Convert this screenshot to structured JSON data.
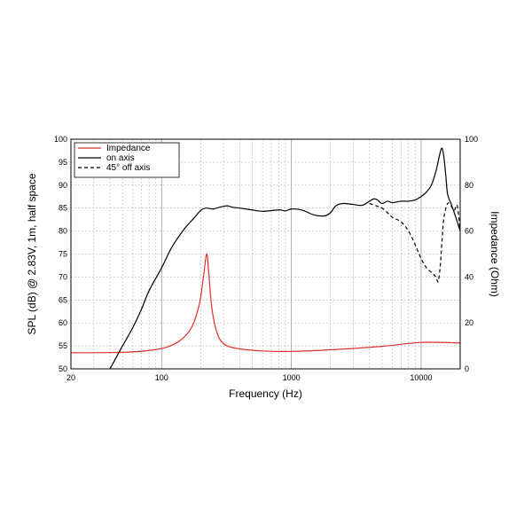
{
  "chart_data": {
    "type": "line",
    "xlabel": "Frequency (Hz)",
    "ylabel_left": "SPL (dB) @ 2.83V, 1m, half space",
    "ylabel_right": "Impedance (Ohm)",
    "x_scale": "log",
    "xlim": [
      20,
      20000
    ],
    "ylim_left": [
      50,
      100
    ],
    "ylim_right": [
      0,
      100
    ],
    "x_tick_labels": [
      "20",
      "100",
      "1000",
      "10000"
    ],
    "x_ticks": [
      20,
      100,
      1000,
      10000
    ],
    "y_left_ticks": [
      50,
      55,
      60,
      65,
      70,
      75,
      80,
      85,
      90,
      95,
      100
    ],
    "y_right_ticks": [
      0,
      20,
      40,
      60,
      80,
      100
    ],
    "grid": true,
    "legend_position": "top-left",
    "series": [
      {
        "name": "Impedance",
        "axis": "right",
        "color": "#e0302a",
        "dash": "solid",
        "x": [
          20,
          50,
          80,
          110,
          140,
          170,
          195,
          210,
          222,
          230,
          240,
          255,
          280,
          320,
          400,
          600,
          1000,
          2000,
          5000,
          10000,
          20000
        ],
        "y": [
          7,
          7.2,
          8,
          9.5,
          12.5,
          18,
          28,
          40,
          50,
          43,
          30,
          20,
          13,
          10,
          8.7,
          7.8,
          7.6,
          8.3,
          9.8,
          11.5,
          11.3
        ]
      },
      {
        "name": "on axis",
        "axis": "left",
        "color": "#000000",
        "dash": "solid",
        "x": [
          40,
          50,
          60,
          70,
          80,
          100,
          120,
          150,
          180,
          200,
          220,
          250,
          280,
          320,
          350,
          400,
          500,
          600,
          800,
          900,
          1000,
          1200,
          1500,
          1800,
          2000,
          2200,
          2500,
          3000,
          3500,
          4000,
          4300,
          4600,
          5000,
          5500,
          6000,
          7000,
          8000,
          9000,
          10000,
          11000,
          12000,
          13000,
          14000,
          14500,
          15000,
          15500,
          16000,
          17000,
          18000,
          19000,
          20000
        ],
        "y": [
          50,
          55,
          59,
          63,
          67,
          72,
          76.5,
          80.5,
          83,
          84.5,
          85,
          84.8,
          85.2,
          85.5,
          85.2,
          85,
          84.6,
          84.3,
          84.6,
          84.4,
          84.8,
          84.6,
          83.5,
          83.3,
          84,
          85.5,
          86,
          85.8,
          85.6,
          86.5,
          87,
          86.8,
          86,
          86.5,
          86.2,
          86.5,
          86.5,
          86.8,
          87.5,
          88.5,
          90,
          93,
          97,
          98,
          96,
          92,
          88,
          86,
          84,
          82,
          80
        ]
      },
      {
        "name": "45° off axis",
        "axis": "left",
        "color": "#000000",
        "dash": "dashed",
        "x": [
          4000,
          4500,
          5000,
          5500,
          6000,
          7000,
          8000,
          9000,
          10000,
          11000,
          12000,
          13000,
          13500,
          14000,
          14500,
          15000,
          16000,
          17000,
          18000,
          19000,
          20000
        ],
        "y": [
          86,
          85.5,
          85,
          84,
          83,
          82,
          80,
          77,
          74,
          72,
          71,
          70,
          69,
          72,
          78,
          83,
          86,
          85.5,
          84.5,
          85.5,
          80
        ]
      }
    ]
  }
}
